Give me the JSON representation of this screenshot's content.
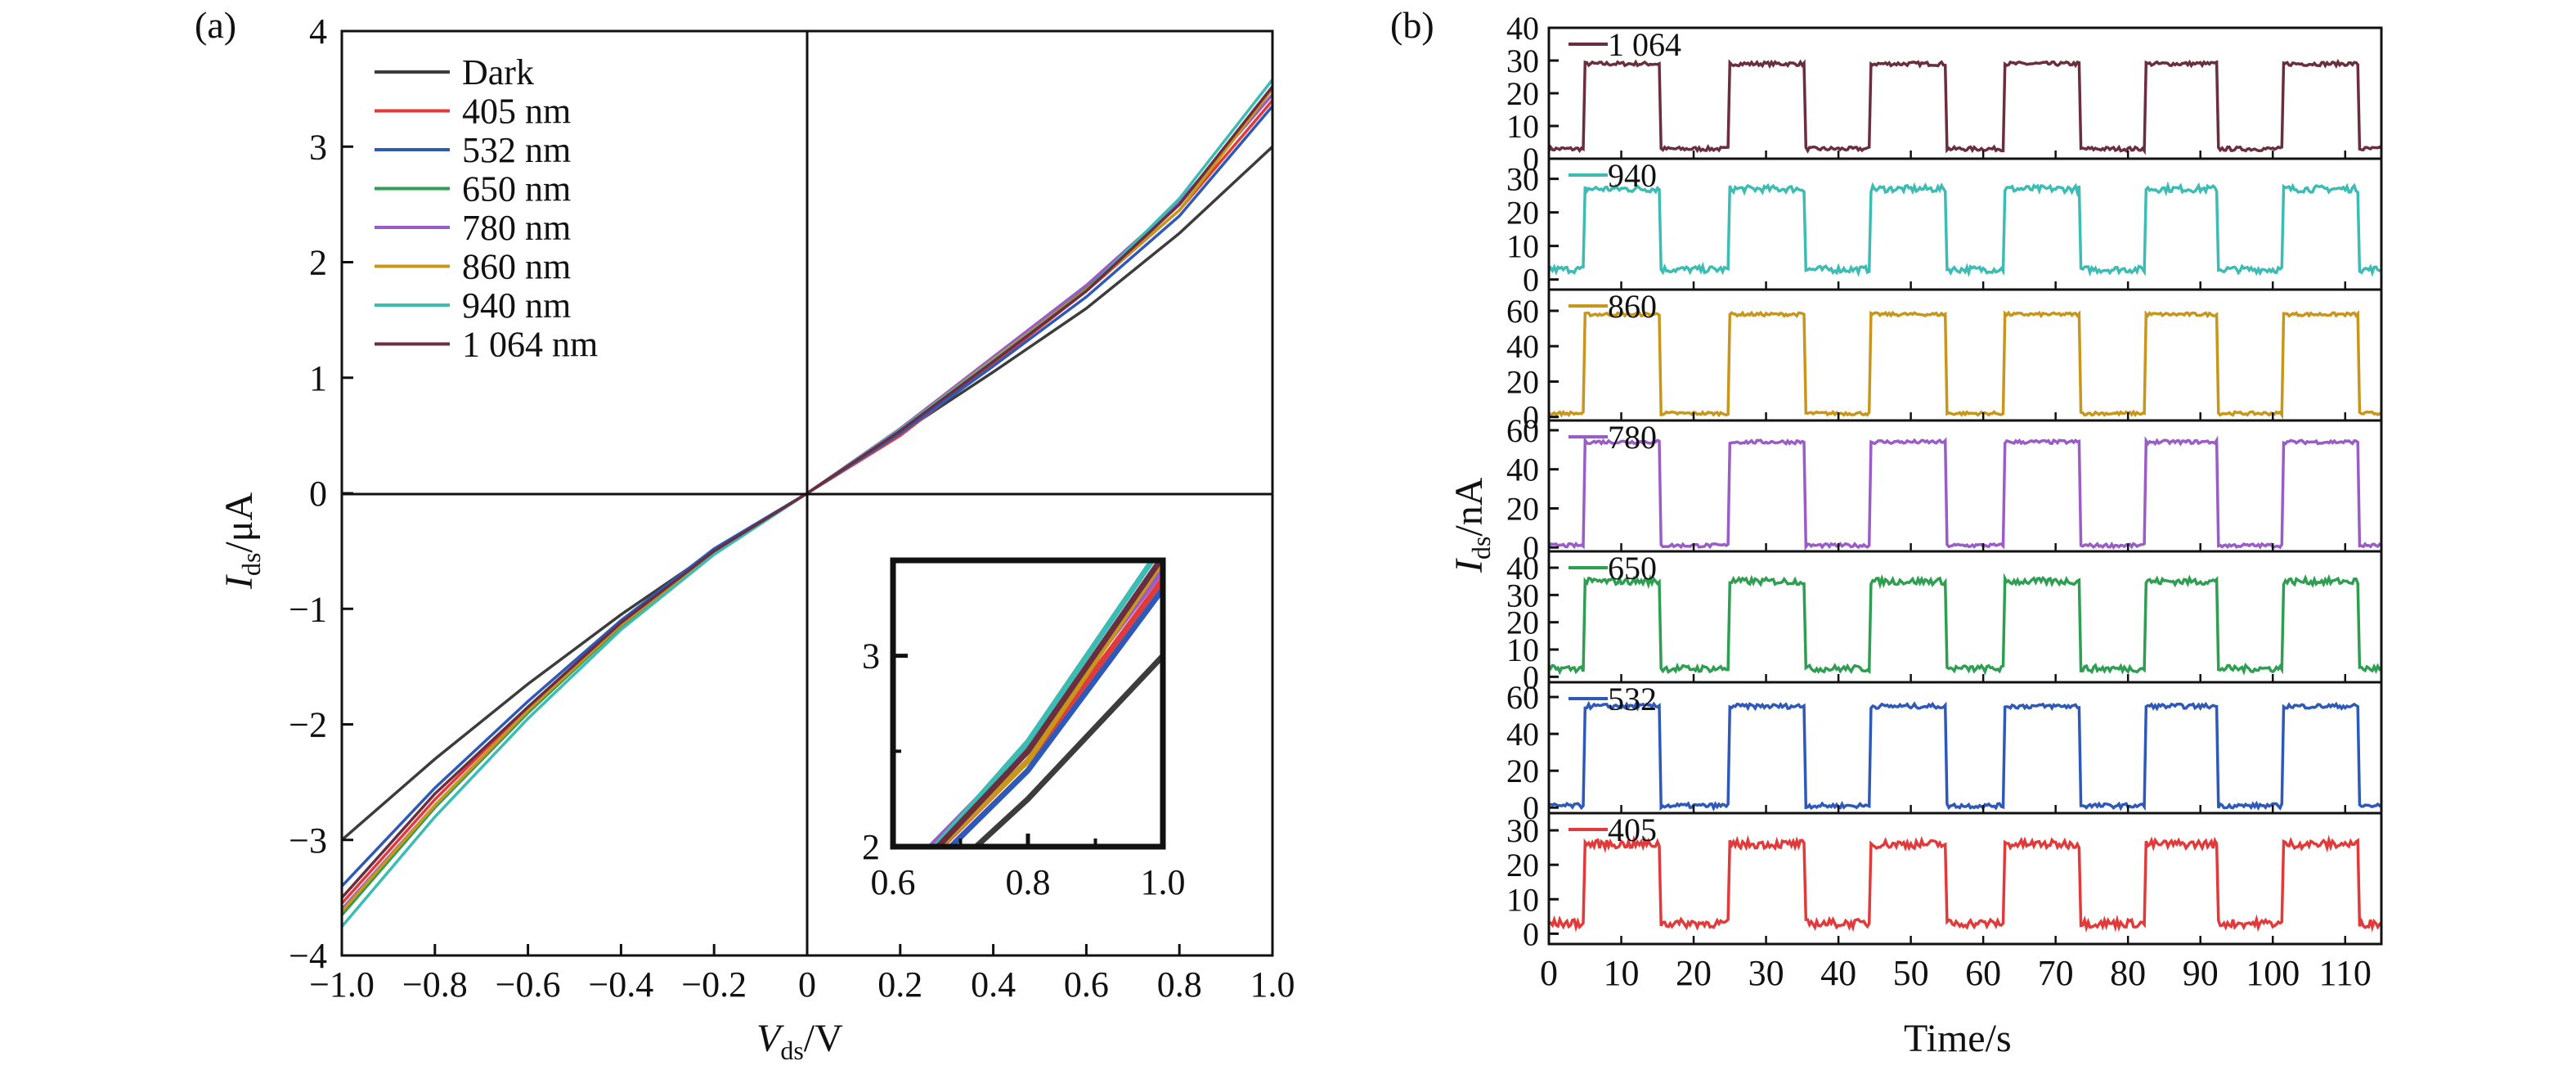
{
  "panels": {
    "a": {
      "label": "(a)",
      "xlabel_main": "V",
      "xlabel_sub": "ds",
      "xlabel_unit": "/V",
      "ylabel_main": "I",
      "ylabel_sub": "ds",
      "ylabel_unit": "/μA",
      "xticks": [
        "−1.0",
        "−0.8",
        "−0.6",
        "−0.4",
        "−0.2",
        "0",
        "0.2",
        "0.4",
        "0.6",
        "0.8",
        "1.0"
      ],
      "yticks": [
        "−4",
        "−3",
        "−2",
        "−1",
        "0",
        "1",
        "2",
        "3",
        "4"
      ],
      "inset_xticks": [
        "0.6",
        "0.8",
        "1.0"
      ],
      "inset_yticks": [
        "2",
        "3"
      ]
    },
    "b": {
      "label": "(b)",
      "xlabel": "Time/s",
      "ylabel_main": "I",
      "ylabel_sub": "ds",
      "ylabel_unit": "/nA",
      "xticks": [
        "0",
        "10",
        "20",
        "30",
        "40",
        "50",
        "60",
        "70",
        "80",
        "90",
        "100",
        "110"
      ]
    }
  },
  "chart_data": [
    {
      "type": "line",
      "panel": "a",
      "xlim": [
        -1.0,
        1.0
      ],
      "ylim": [
        -4,
        4
      ],
      "xlabel": "Vds/V",
      "ylabel": "Ids/μA",
      "legend_position": "top-left",
      "series": [
        {
          "name": "Dark",
          "color": "#3c3c3c",
          "x": [
            -1.0,
            -0.8,
            -0.6,
            -0.4,
            -0.2,
            0,
            0.2,
            0.4,
            0.6,
            0.8,
            1.0
          ],
          "y": [
            -3.0,
            -2.3,
            -1.65,
            -1.05,
            -0.5,
            0,
            0.52,
            1.05,
            1.6,
            2.25,
            3.0
          ]
        },
        {
          "name": "405 nm",
          "color": "#e23a3a",
          "x": [
            -1.0,
            -0.8,
            -0.6,
            -0.4,
            -0.2,
            0,
            0.2,
            0.4,
            0.6,
            0.8,
            1.0
          ],
          "y": [
            -3.55,
            -2.65,
            -1.85,
            -1.12,
            -0.5,
            0,
            0.5,
            1.12,
            1.75,
            2.45,
            3.4
          ]
        },
        {
          "name": "532 nm",
          "color": "#2e59b8",
          "x": [
            -1.0,
            -0.8,
            -0.6,
            -0.4,
            -0.2,
            0,
            0.2,
            0.4,
            0.6,
            0.8,
            1.0
          ],
          "y": [
            -3.4,
            -2.55,
            -1.8,
            -1.1,
            -0.48,
            0,
            0.52,
            1.1,
            1.7,
            2.4,
            3.35
          ]
        },
        {
          "name": "650 nm",
          "color": "#2e9e50",
          "x": [
            -1.0,
            -0.8,
            -0.6,
            -0.4,
            -0.2,
            0,
            0.2,
            0.4,
            0.6,
            0.8,
            1.0
          ],
          "y": [
            -3.65,
            -2.72,
            -1.9,
            -1.15,
            -0.52,
            0,
            0.55,
            1.15,
            1.78,
            2.5,
            3.5
          ]
        },
        {
          "name": "780 nm",
          "color": "#9a5cc6",
          "x": [
            -1.0,
            -0.8,
            -0.6,
            -0.4,
            -0.2,
            0,
            0.2,
            0.4,
            0.6,
            0.8,
            1.0
          ],
          "y": [
            -3.6,
            -2.7,
            -1.88,
            -1.14,
            -0.51,
            0,
            0.56,
            1.18,
            1.8,
            2.52,
            3.45
          ]
        },
        {
          "name": "860 nm",
          "color": "#c8961a",
          "x": [
            -1.0,
            -0.8,
            -0.6,
            -0.4,
            -0.2,
            0,
            0.2,
            0.4,
            0.6,
            0.8,
            1.0
          ],
          "y": [
            -3.62,
            -2.7,
            -1.88,
            -1.14,
            -0.51,
            0,
            0.55,
            1.16,
            1.76,
            2.45,
            3.5
          ]
        },
        {
          "name": "940 nm",
          "color": "#3cbcb4",
          "x": [
            -1.0,
            -0.8,
            -0.6,
            -0.4,
            -0.2,
            0,
            0.2,
            0.4,
            0.6,
            0.8,
            1.0
          ],
          "y": [
            -3.75,
            -2.8,
            -1.95,
            -1.18,
            -0.53,
            0,
            0.55,
            1.15,
            1.75,
            2.55,
            3.58
          ]
        },
        {
          "name": "1 064 nm",
          "color": "#6a2e3e",
          "x": [
            -1.0,
            -0.8,
            -0.6,
            -0.4,
            -0.2,
            0,
            0.2,
            0.4,
            0.6,
            0.8,
            1.0
          ],
          "y": [
            -3.5,
            -2.6,
            -1.85,
            -1.12,
            -0.5,
            0,
            0.54,
            1.14,
            1.75,
            2.5,
            3.52
          ]
        }
      ]
    },
    {
      "type": "line",
      "panel": "a-inset",
      "xlim": [
        0.6,
        1.0
      ],
      "ylim": [
        2,
        3.5
      ],
      "note_series_same_as": "panel a"
    },
    {
      "type": "line",
      "panel": "b",
      "xlabel": "Time/s",
      "ylabel": "Ids/nA",
      "xlim": [
        0,
        115
      ],
      "on_intervals": [
        [
          5,
          15.5
        ],
        [
          25,
          35.5
        ],
        [
          44.5,
          55
        ],
        [
          63,
          73.5
        ],
        [
          82.5,
          92.5
        ],
        [
          101.5,
          112
        ]
      ],
      "traces": [
        {
          "label": "1 064",
          "color": "#6a2e3e",
          "ylim": [
            0,
            40
          ],
          "yticks": [
            "0",
            "10",
            "20",
            "30",
            "40"
          ],
          "off": 3,
          "on": 29,
          "noise": 0.6
        },
        {
          "label": "940",
          "color": "#3cbcb4",
          "ylim": [
            -3,
            36
          ],
          "yticks": [
            "0",
            "10",
            "20",
            "30"
          ],
          "off": 3,
          "on": 27,
          "noise": 1.0
        },
        {
          "label": "860",
          "color": "#c8961a",
          "ylim": [
            -2,
            72
          ],
          "yticks": [
            "0",
            "20",
            "40",
            "60"
          ],
          "off": 2,
          "on": 58,
          "noise": 0.9
        },
        {
          "label": "780",
          "color": "#9a5cc6",
          "ylim": [
            -2,
            65
          ],
          "yticks": [
            "0",
            "20",
            "40",
            "60"
          ],
          "off": 1,
          "on": 54,
          "noise": 0.9
        },
        {
          "label": "650",
          "color": "#2e9e50",
          "ylim": [
            -2,
            46
          ],
          "yticks": [
            "0",
            "10",
            "20",
            "30",
            "40"
          ],
          "off": 3,
          "on": 35,
          "noise": 1.2
        },
        {
          "label": "532",
          "color": "#2e59b8",
          "ylim": [
            -3,
            68
          ],
          "yticks": [
            "0",
            "20",
            "40",
            "60"
          ],
          "off": 1,
          "on": 55,
          "noise": 1.2
        },
        {
          "label": "405",
          "color": "#e23a3a",
          "ylim": [
            -3,
            35
          ],
          "yticks": [
            "0",
            "10",
            "20",
            "30"
          ],
          "off": 3,
          "on": 26,
          "noise": 1.2
        }
      ]
    }
  ]
}
